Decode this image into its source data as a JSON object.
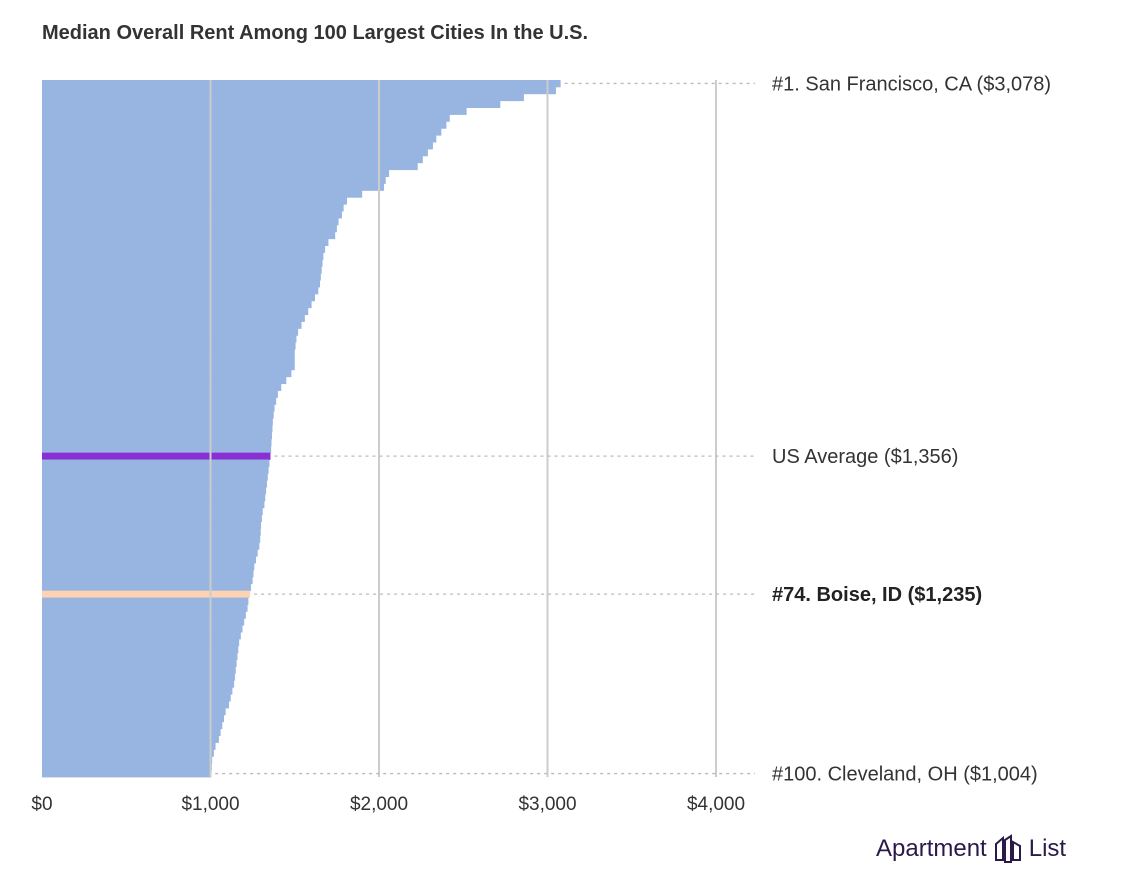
{
  "chart_data": {
    "type": "bar",
    "orientation": "horizontal",
    "title": "Median Overall Rent Among 100 Largest Cities In the U.S.",
    "xlim": [
      0,
      4000
    ],
    "x_ticks": [
      "$0",
      "$1,000",
      "$2,000",
      "$3,000",
      "$4,000"
    ],
    "x_tick_values": [
      0,
      1000,
      2000,
      3000,
      4000
    ],
    "grid": "vertical",
    "values": [
      3078,
      3050,
      2860,
      2720,
      2520,
      2420,
      2400,
      2370,
      2340,
      2320,
      2290,
      2260,
      2230,
      2060,
      2040,
      2030,
      1900,
      1810,
      1790,
      1780,
      1760,
      1750,
      1740,
      1700,
      1680,
      1670,
      1665,
      1660,
      1655,
      1650,
      1640,
      1620,
      1600,
      1580,
      1560,
      1540,
      1520,
      1510,
      1505,
      1500,
      1500,
      1500,
      1480,
      1450,
      1420,
      1400,
      1390,
      1380,
      1375,
      1370,
      1368,
      1365,
      1362,
      1360,
      1350,
      1345,
      1340,
      1335,
      1330,
      1325,
      1320,
      1310,
      1305,
      1300,
      1298,
      1295,
      1290,
      1280,
      1270,
      1260,
      1255,
      1250,
      1240,
      1235,
      1225,
      1220,
      1210,
      1200,
      1190,
      1180,
      1170,
      1165,
      1160,
      1155,
      1150,
      1145,
      1140,
      1130,
      1120,
      1110,
      1090,
      1080,
      1070,
      1060,
      1050,
      1030,
      1020,
      1010,
      1008,
      1004
    ],
    "us_average": 1356,
    "highlight_rank": 74,
    "annotations": [
      {
        "key": "top",
        "rank": 1,
        "label": "#1. San Francisco, CA ($3,078)"
      },
      {
        "key": "avg",
        "label": "US Average ($1,356)"
      },
      {
        "key": "boise",
        "rank": 74,
        "label": "#74. Boise, ID ($1,235)"
      },
      {
        "key": "bottom",
        "rank": 100,
        "label": "#100. Cleveland, OH ($1,004)"
      }
    ],
    "colors": {
      "bars": "#97b5e0",
      "us_average": "#8a2fd4",
      "highlight": "#fdd3b4"
    }
  },
  "logo": {
    "text_left": "Apartment",
    "text_right": "List"
  }
}
